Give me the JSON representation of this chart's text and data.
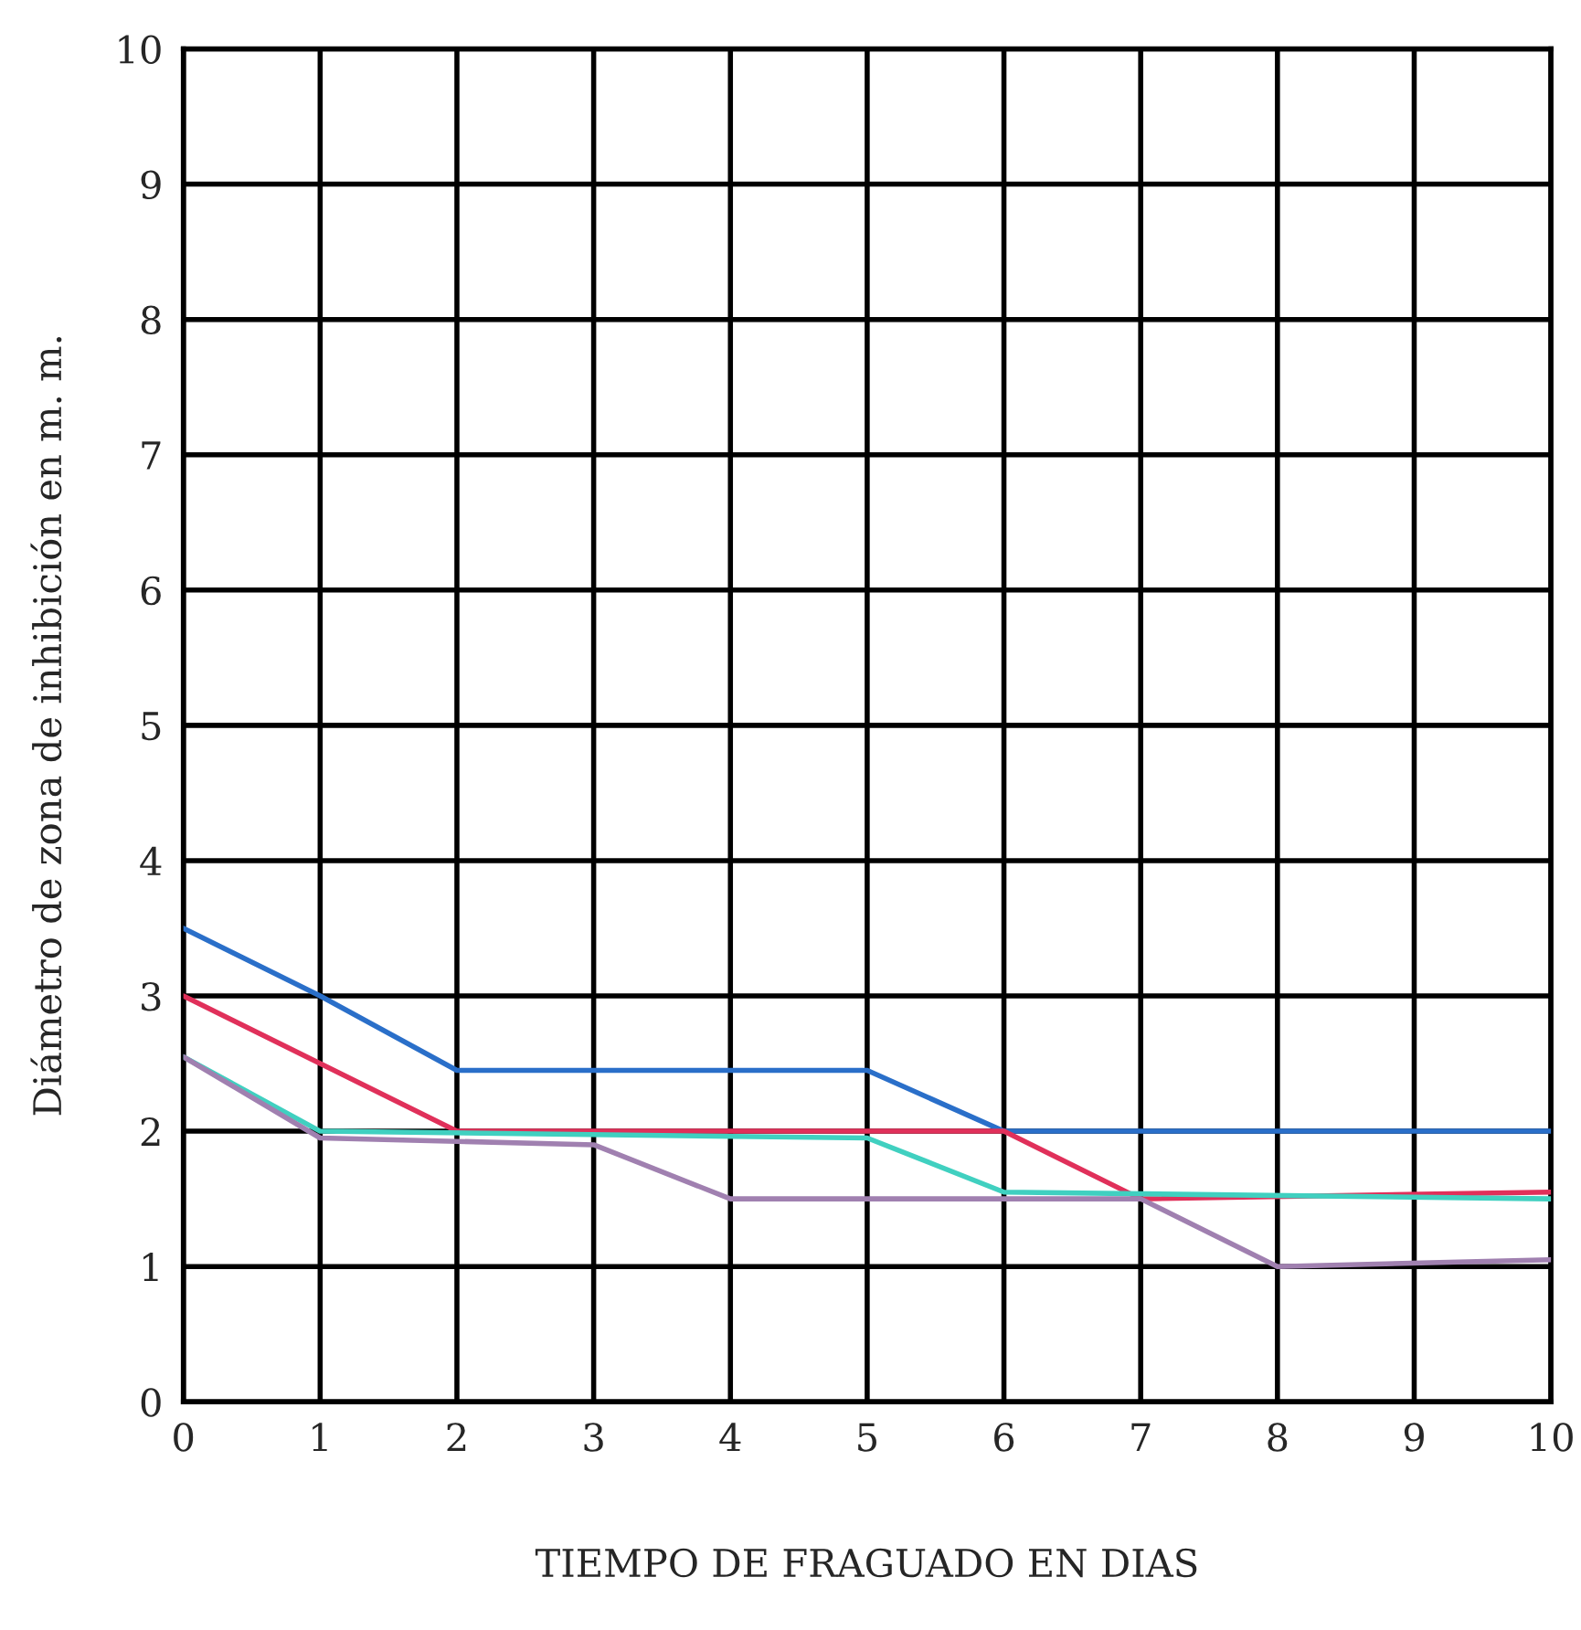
{
  "chart_data": {
    "type": "line",
    "xlabel": "TIEMPO DE FRAGUADO EN DIAS",
    "ylabel": "Diámetro de zona de inhibición en m. m.",
    "xlim": [
      0,
      10
    ],
    "ylim": [
      0,
      10
    ],
    "xticks": [
      0,
      1,
      2,
      3,
      4,
      5,
      6,
      7,
      8,
      9,
      10
    ],
    "yticks": [
      0,
      1,
      2,
      3,
      4,
      5,
      6,
      7,
      8,
      9,
      10
    ],
    "grid": true,
    "legend": false,
    "marker": "none",
    "line_style": "solid",
    "series": [
      {
        "color": "#2a6fc9",
        "x": [
          0,
          1,
          2,
          5,
          6,
          10
        ],
        "values": [
          3.5,
          3.0,
          2.45,
          2.45,
          2.0,
          2.0
        ]
      },
      {
        "color": "#e0305a",
        "x": [
          0,
          1,
          2,
          6,
          7,
          10
        ],
        "values": [
          3.0,
          2.5,
          2.0,
          2.0,
          1.5,
          1.55
        ]
      },
      {
        "color": "#40d0c0",
        "x": [
          0,
          1,
          5,
          6,
          10
        ],
        "values": [
          2.55,
          2.0,
          1.95,
          1.55,
          1.5
        ]
      },
      {
        "color": "#a080b0",
        "x": [
          0,
          1,
          3,
          4,
          7,
          8,
          10
        ],
        "values": [
          2.55,
          1.95,
          1.9,
          1.5,
          1.5,
          1.0,
          1.05
        ]
      }
    ]
  }
}
